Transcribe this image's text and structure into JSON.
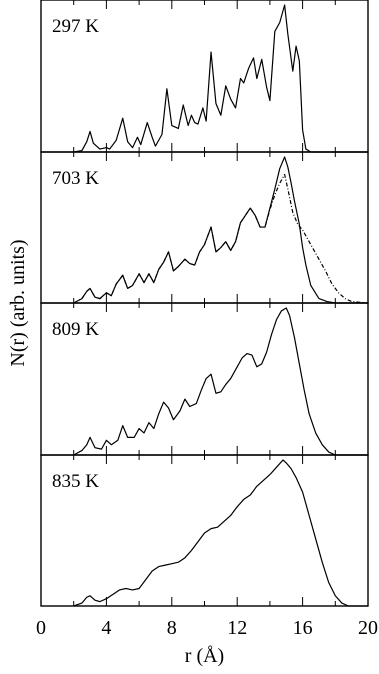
{
  "chart_data": {
    "type": "line",
    "xlabel": "r (Å)",
    "ylabel": "N(r) (arb. units)",
    "xlim": [
      0,
      20
    ],
    "xticks": [
      "0",
      "4",
      "8",
      "12",
      "16",
      "20"
    ],
    "panels": [
      {
        "label": "297 K",
        "series": [
          {
            "style": "solid",
            "x": [
              2.0,
              2.5,
              2.8,
              3.0,
              3.2,
              3.6,
              4.0,
              4.2,
              4.6,
              5.0,
              5.3,
              5.6,
              5.9,
              6.1,
              6.5,
              6.8,
              7.0,
              7.4,
              7.7,
              8.0,
              8.4,
              8.7,
              9.0,
              9.2,
              9.4,
              9.6,
              9.9,
              10.1,
              10.4,
              10.7,
              11.0,
              11.3,
              11.6,
              11.9,
              12.2,
              12.4,
              12.7,
              13.0,
              13.2,
              13.5,
              13.8,
              14.0,
              14.3,
              14.6,
              14.9,
              15.1,
              15.4,
              15.6,
              15.8,
              16.0,
              16.2,
              16.5,
              17.0,
              20.0
            ],
            "y": [
              0.0,
              0.01,
              0.07,
              0.14,
              0.06,
              0.02,
              0.03,
              0.02,
              0.08,
              0.23,
              0.07,
              0.03,
              0.1,
              0.05,
              0.2,
              0.1,
              0.04,
              0.12,
              0.43,
              0.18,
              0.16,
              0.32,
              0.18,
              0.25,
              0.2,
              0.19,
              0.3,
              0.21,
              0.68,
              0.33,
              0.25,
              0.45,
              0.36,
              0.3,
              0.5,
              0.47,
              0.57,
              0.64,
              0.5,
              0.63,
              0.44,
              0.35,
              0.82,
              0.88,
              1.0,
              0.8,
              0.55,
              0.72,
              0.62,
              0.15,
              0.02,
              0.0,
              0.0,
              0.0
            ]
          }
        ]
      },
      {
        "label": "703 K",
        "series": [
          {
            "style": "solid",
            "x": [
              2.0,
              2.5,
              2.8,
              3.0,
              3.3,
              3.6,
              4.0,
              4.3,
              4.6,
              5.0,
              5.3,
              5.6,
              6.0,
              6.3,
              6.6,
              6.9,
              7.2,
              7.5,
              7.8,
              8.1,
              8.4,
              8.8,
              9.1,
              9.4,
              9.7,
              10.0,
              10.4,
              10.7,
              11.0,
              11.3,
              11.6,
              11.9,
              12.2,
              12.5,
              12.8,
              13.1,
              13.4,
              13.7,
              14.0,
              14.3,
              14.6,
              14.9,
              15.1,
              15.3,
              15.5,
              15.8,
              16.0,
              16.2,
              16.5,
              17.0,
              17.5,
              18.0,
              20.0
            ],
            "y": [
              0.0,
              0.03,
              0.08,
              0.1,
              0.04,
              0.03,
              0.07,
              0.05,
              0.13,
              0.19,
              0.1,
              0.12,
              0.2,
              0.14,
              0.2,
              0.14,
              0.23,
              0.28,
              0.35,
              0.22,
              0.25,
              0.3,
              0.27,
              0.26,
              0.35,
              0.4,
              0.52,
              0.35,
              0.38,
              0.42,
              0.36,
              0.42,
              0.55,
              0.6,
              0.65,
              0.6,
              0.52,
              0.52,
              0.65,
              0.78,
              0.92,
              1.0,
              0.93,
              0.82,
              0.7,
              0.54,
              0.38,
              0.26,
              0.12,
              0.03,
              0.01,
              0.0,
              0.0
            ]
          },
          {
            "style": "dashed",
            "x": [
              2.0,
              2.5,
              2.8,
              3.0,
              3.3,
              3.6,
              4.0,
              4.3,
              4.6,
              5.0,
              5.3,
              5.6,
              6.0,
              6.3,
              6.6,
              6.9,
              7.2,
              7.5,
              7.8,
              8.1,
              8.4,
              8.8,
              9.1,
              9.4,
              9.7,
              10.0,
              10.4,
              10.7,
              11.0,
              11.3,
              11.6,
              11.9,
              12.2,
              12.5,
              12.8,
              13.1,
              13.4,
              13.7,
              14.0,
              14.3,
              14.6,
              14.9,
              15.1,
              15.4,
              15.7,
              16.0,
              16.3,
              16.6,
              17.0,
              17.4,
              17.8,
              18.2,
              18.6,
              19.0,
              20.0
            ],
            "y": [
              0.0,
              0.03,
              0.08,
              0.1,
              0.04,
              0.03,
              0.07,
              0.05,
              0.13,
              0.19,
              0.1,
              0.12,
              0.2,
              0.14,
              0.2,
              0.14,
              0.23,
              0.28,
              0.35,
              0.22,
              0.25,
              0.3,
              0.27,
              0.26,
              0.35,
              0.4,
              0.52,
              0.35,
              0.38,
              0.42,
              0.36,
              0.42,
              0.55,
              0.6,
              0.65,
              0.6,
              0.52,
              0.52,
              0.64,
              0.74,
              0.82,
              0.88,
              0.78,
              0.62,
              0.54,
              0.5,
              0.44,
              0.38,
              0.3,
              0.22,
              0.13,
              0.07,
              0.03,
              0.01,
              0.0
            ]
          }
        ]
      },
      {
        "label": "809 K",
        "series": [
          {
            "style": "solid",
            "x": [
              2.0,
              2.5,
              2.8,
              3.0,
              3.3,
              3.7,
              4.0,
              4.3,
              4.7,
              5.0,
              5.3,
              5.7,
              6.0,
              6.3,
              6.6,
              6.9,
              7.2,
              7.5,
              7.8,
              8.1,
              8.5,
              8.8,
              9.1,
              9.5,
              9.8,
              10.1,
              10.4,
              10.7,
              11.0,
              11.3,
              11.6,
              12.0,
              12.3,
              12.6,
              12.9,
              13.2,
              13.5,
              13.8,
              14.1,
              14.4,
              14.7,
              15.0,
              15.2,
              15.5,
              15.8,
              16.1,
              16.4,
              16.8,
              17.2,
              17.6,
              18.0,
              20.0
            ],
            "y": [
              0.0,
              0.03,
              0.07,
              0.12,
              0.05,
              0.04,
              0.1,
              0.07,
              0.1,
              0.2,
              0.12,
              0.12,
              0.18,
              0.15,
              0.22,
              0.18,
              0.28,
              0.36,
              0.32,
              0.24,
              0.3,
              0.38,
              0.33,
              0.35,
              0.44,
              0.52,
              0.55,
              0.42,
              0.43,
              0.48,
              0.52,
              0.6,
              0.66,
              0.69,
              0.68,
              0.6,
              0.62,
              0.7,
              0.82,
              0.92,
              0.98,
              1.0,
              0.95,
              0.8,
              0.62,
              0.44,
              0.28,
              0.15,
              0.07,
              0.02,
              0.0,
              0.0
            ]
          }
        ]
      },
      {
        "label": "835 K",
        "series": [
          {
            "style": "solid",
            "x": [
              2.0,
              2.5,
              2.8,
              3.0,
              3.3,
              3.6,
              4.0,
              4.4,
              4.8,
              5.2,
              5.6,
              6.0,
              6.4,
              6.8,
              7.2,
              7.6,
              8.0,
              8.4,
              8.8,
              9.2,
              9.6,
              10.0,
              10.4,
              10.8,
              11.2,
              11.6,
              12.0,
              12.4,
              12.8,
              13.2,
              13.6,
              14.0,
              14.4,
              14.8,
              15.0,
              15.3,
              15.6,
              16.0,
              16.4,
              16.8,
              17.2,
              17.6,
              18.0,
              18.4,
              18.8,
              20.0
            ],
            "y": [
              0.0,
              0.02,
              0.06,
              0.07,
              0.04,
              0.03,
              0.05,
              0.08,
              0.11,
              0.12,
              0.11,
              0.12,
              0.18,
              0.24,
              0.27,
              0.28,
              0.29,
              0.3,
              0.33,
              0.38,
              0.44,
              0.5,
              0.53,
              0.54,
              0.58,
              0.62,
              0.68,
              0.73,
              0.76,
              0.82,
              0.86,
              0.9,
              0.95,
              1.0,
              0.98,
              0.94,
              0.88,
              0.78,
              0.62,
              0.46,
              0.3,
              0.16,
              0.07,
              0.02,
              0.0,
              0.0
            ]
          }
        ]
      }
    ]
  }
}
